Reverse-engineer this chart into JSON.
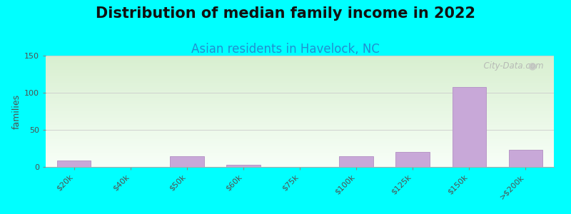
{
  "title": "Distribution of median family income in 2022",
  "subtitle": "Asian residents in Havelock, NC",
  "ylabel": "families",
  "background_color": "#00FFFF",
  "plot_bg_color_top": "#d8efd0",
  "plot_bg_color_bottom": "#f8fff8",
  "bar_color": "#c8a8d8",
  "bar_edge_color": "#b898c8",
  "categories": [
    "$20k",
    "$40k",
    "$50k",
    "$60k",
    "$75k",
    "$100k",
    "$125k",
    "$150k",
    ">$200k"
  ],
  "values": [
    9,
    0,
    14,
    3,
    0,
    14,
    20,
    108,
    23
  ],
  "ylim": [
    0,
    150
  ],
  "yticks": [
    0,
    50,
    100,
    150
  ],
  "title_fontsize": 15,
  "subtitle_fontsize": 12,
  "subtitle_color": "#2090d0",
  "ylabel_fontsize": 9,
  "tick_fontsize": 8,
  "tick_color": "#505050",
  "watermark": "  City-Data.com"
}
